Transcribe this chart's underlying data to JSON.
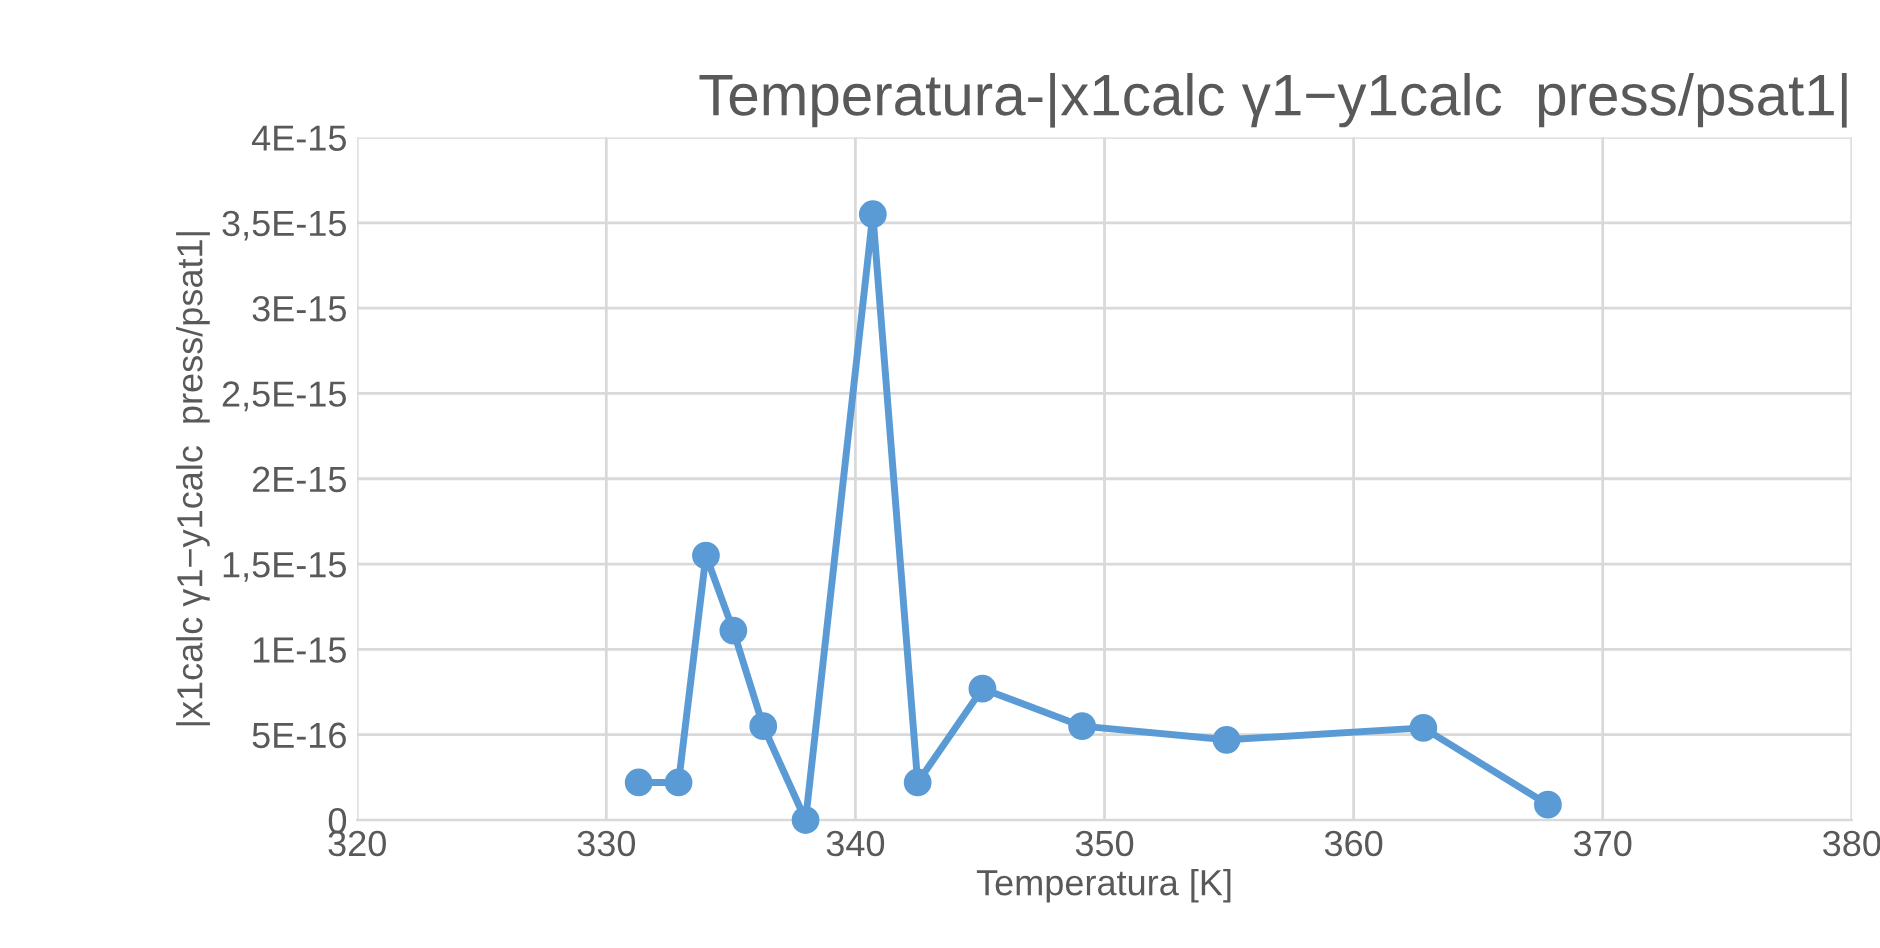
{
  "chart_data": {
    "type": "line",
    "title": "Temperatura-|x1calc γ1−y1calc  press/psat1|",
    "xlabel": "Temperatura [K]",
    "ylabel": "|x1calc γ1−y1calc  press/psat1|",
    "x": [
      331.3,
      332.9,
      334.0,
      335.1,
      336.3,
      338.0,
      340.7,
      342.5,
      345.1,
      349.1,
      354.9,
      362.8,
      367.8
    ],
    "series": [
      {
        "color": "#5b9bd5",
        "values": [
          2.2e-16,
          2.2e-16,
          1.55e-15,
          1.11e-15,
          5.5e-16,
          0,
          3.55e-15,
          2.2e-16,
          7.7e-16,
          5.5e-16,
          4.7e-16,
          5.4e-16,
          9e-17
        ]
      }
    ],
    "xlim": [
      320,
      380
    ],
    "xticks": [
      320,
      330,
      340,
      350,
      360,
      370,
      380
    ],
    "ylim": [
      0,
      4e-15
    ],
    "yticks": [
      {
        "value": 0,
        "label": "0"
      },
      {
        "value": 5e-16,
        "label": "5E-16"
      },
      {
        "value": 1e-15,
        "label": "1E-15"
      },
      {
        "value": 1.5e-15,
        "label": "1,5E-15"
      },
      {
        "value": 2e-15,
        "label": "2E-15"
      },
      {
        "value": 2.5e-15,
        "label": "2,5E-15"
      },
      {
        "value": 3e-15,
        "label": "3E-15"
      },
      {
        "value": 3.5e-15,
        "label": "3,5E-15"
      },
      {
        "value": 4e-15,
        "label": "4E-15"
      }
    ],
    "grid": true,
    "marker": "circle",
    "line_style": "solid"
  }
}
